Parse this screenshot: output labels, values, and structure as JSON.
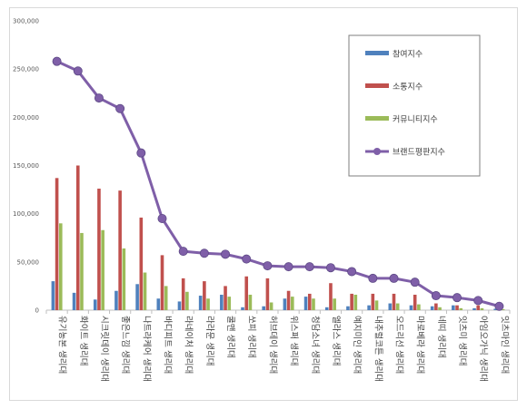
{
  "chart_data": {
    "type": "bar",
    "categories": [
      "유기농본 생리대",
      "화이트 생리대",
      "시크릿데이 생리대",
      "좋은느낌 생리대",
      "나트라케어 생리대",
      "바디피트 생리대",
      "라네이처 생리대",
      "라라문 생리대",
      "쿨맨 생리대",
      "쏘피 생리대",
      "허브데이 생리대",
      "위스퍼 생리대",
      "청담소녀 생리대",
      "엘라스 생리대",
      "예지미인 생리대",
      "내추럴코튼 생리대",
      "오드리선 생리대",
      "마로베라 생리대",
      "네띠 생리대",
      "잇츠미 생리대",
      "아임오가닉 생리대",
      "잇츠마인 생리대"
    ],
    "series": [
      {
        "name": "참여지수",
        "kind": "bar",
        "color": "#4f81bd",
        "values": [
          30000,
          18000,
          11000,
          20000,
          27000,
          12000,
          9000,
          15000,
          16000,
          3000,
          4000,
          12000,
          14000,
          3000,
          4000,
          5000,
          7000,
          5000,
          4000,
          5000,
          2000,
          1500
        ]
      },
      {
        "name": "소통지수",
        "kind": "bar",
        "color": "#c0504d",
        "values": [
          137000,
          150000,
          126000,
          124000,
          96000,
          57000,
          33000,
          30000,
          25000,
          35000,
          33000,
          20000,
          17000,
          28000,
          17000,
          17000,
          17000,
          16000,
          7000,
          5000,
          5000,
          2000
        ]
      },
      {
        "name": "커뮤니티지수",
        "kind": "bar",
        "color": "#9bbb59",
        "values": [
          90000,
          80000,
          83000,
          64000,
          39000,
          25000,
          19000,
          12000,
          14000,
          16000,
          8000,
          14000,
          12000,
          12000,
          16000,
          10000,
          7000,
          6000,
          3000,
          2000,
          2000,
          1000
        ]
      },
      {
        "name": "브랜드평판지수",
        "kind": "line",
        "color": "#7f5fa8",
        "values": [
          258000,
          248000,
          220000,
          209000,
          163000,
          95000,
          61000,
          59000,
          58000,
          53000,
          46000,
          45000,
          45000,
          44000,
          40000,
          33000,
          33000,
          29000,
          15000,
          13000,
          10000,
          4000
        ]
      }
    ],
    "ylim": [
      0,
      300000
    ],
    "yticks": [
      "0",
      "50,000",
      "100,000",
      "150,000",
      "200,000",
      "250,000",
      "300,000"
    ],
    "grid": false,
    "legend_position": "top-right"
  }
}
